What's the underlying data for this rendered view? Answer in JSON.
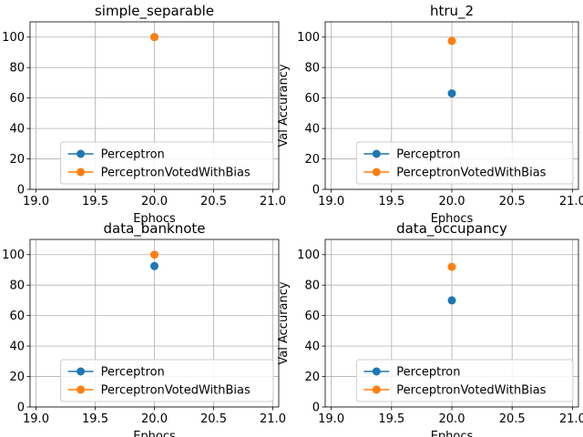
{
  "figure": {
    "background": "#ffffff",
    "grid_color": "#b0b0b0",
    "series_colors": {
      "Perceptron": "#1f77b4",
      "PerceptronVotedWithBias": "#ff7f0e"
    }
  },
  "chart_data": [
    {
      "type": "line",
      "title": "simple_separable",
      "xlabel": "Ephocs",
      "ylabel": "",
      "xlim": [
        18.95,
        21.05
      ],
      "ylim": [
        0,
        110
      ],
      "xticks": [
        19.0,
        19.5,
        20.0,
        20.5,
        21.0
      ],
      "xtick_labels": [
        "19.0",
        "19.5",
        "20.0",
        "20.5",
        "21.0"
      ],
      "yticks": [
        0,
        20,
        40,
        60,
        80,
        100
      ],
      "ytick_labels": [
        "0",
        "20",
        "40",
        "60",
        "80",
        "100"
      ],
      "grid": true,
      "legend": "lower-right",
      "series": [
        {
          "name": "Perceptron",
          "color": "#1f77b4",
          "x": [
            20
          ],
          "y": [
            100
          ]
        },
        {
          "name": "PerceptronVotedWithBias",
          "color": "#ff7f0e",
          "x": [
            20
          ],
          "y": [
            100
          ]
        }
      ]
    },
    {
      "type": "line",
      "title": "htru_2",
      "xlabel": "Ephocs",
      "ylabel": "Val Accurancy",
      "xlim": [
        18.95,
        21.05
      ],
      "ylim": [
        0,
        110
      ],
      "xticks": [
        19.0,
        19.5,
        20.0,
        20.5,
        21.0
      ],
      "xtick_labels": [
        "19.0",
        "19.5",
        "20.0",
        "20.5",
        "21.0"
      ],
      "yticks": [
        0,
        20,
        40,
        60,
        80,
        100
      ],
      "ytick_labels": [
        "0",
        "20",
        "40",
        "60",
        "80",
        "100"
      ],
      "grid": true,
      "legend": "lower-right",
      "series": [
        {
          "name": "Perceptron",
          "color": "#1f77b4",
          "x": [
            20
          ],
          "y": [
            63
          ]
        },
        {
          "name": "PerceptronVotedWithBias",
          "color": "#ff7f0e",
          "x": [
            20
          ],
          "y": [
            97.5
          ]
        }
      ]
    },
    {
      "type": "line",
      "title": "data_banknote",
      "xlabel": "Ephocs",
      "ylabel": "",
      "xlim": [
        18.95,
        21.05
      ],
      "ylim": [
        0,
        110
      ],
      "xticks": [
        19.0,
        19.5,
        20.0,
        20.5,
        21.0
      ],
      "xtick_labels": [
        "19.0",
        "19.5",
        "20.0",
        "20.5",
        "21.0"
      ],
      "yticks": [
        0,
        20,
        40,
        60,
        80,
        100
      ],
      "ytick_labels": [
        "0",
        "20",
        "40",
        "60",
        "80",
        "100"
      ],
      "grid": true,
      "legend": "lower-right",
      "series": [
        {
          "name": "Perceptron",
          "color": "#1f77b4",
          "x": [
            20
          ],
          "y": [
            92.5
          ]
        },
        {
          "name": "PerceptronVotedWithBias",
          "color": "#ff7f0e",
          "x": [
            20
          ],
          "y": [
            100
          ]
        }
      ]
    },
    {
      "type": "line",
      "title": "data_occupancy",
      "xlabel": "Ephocs",
      "ylabel": "Val Accurancy",
      "xlim": [
        18.95,
        21.05
      ],
      "ylim": [
        0,
        110
      ],
      "xticks": [
        19.0,
        19.5,
        20.0,
        20.5,
        21.0
      ],
      "xtick_labels": [
        "19.0",
        "19.5",
        "20.0",
        "20.5",
        "21.0"
      ],
      "yticks": [
        0,
        20,
        40,
        60,
        80,
        100
      ],
      "ytick_labels": [
        "0",
        "20",
        "40",
        "60",
        "80",
        "100"
      ],
      "grid": true,
      "legend": "lower-right",
      "series": [
        {
          "name": "Perceptron",
          "color": "#1f77b4",
          "x": [
            20
          ],
          "y": [
            70
          ]
        },
        {
          "name": "PerceptronVotedWithBias",
          "color": "#ff7f0e",
          "x": [
            20
          ],
          "y": [
            92
          ]
        }
      ]
    }
  ]
}
